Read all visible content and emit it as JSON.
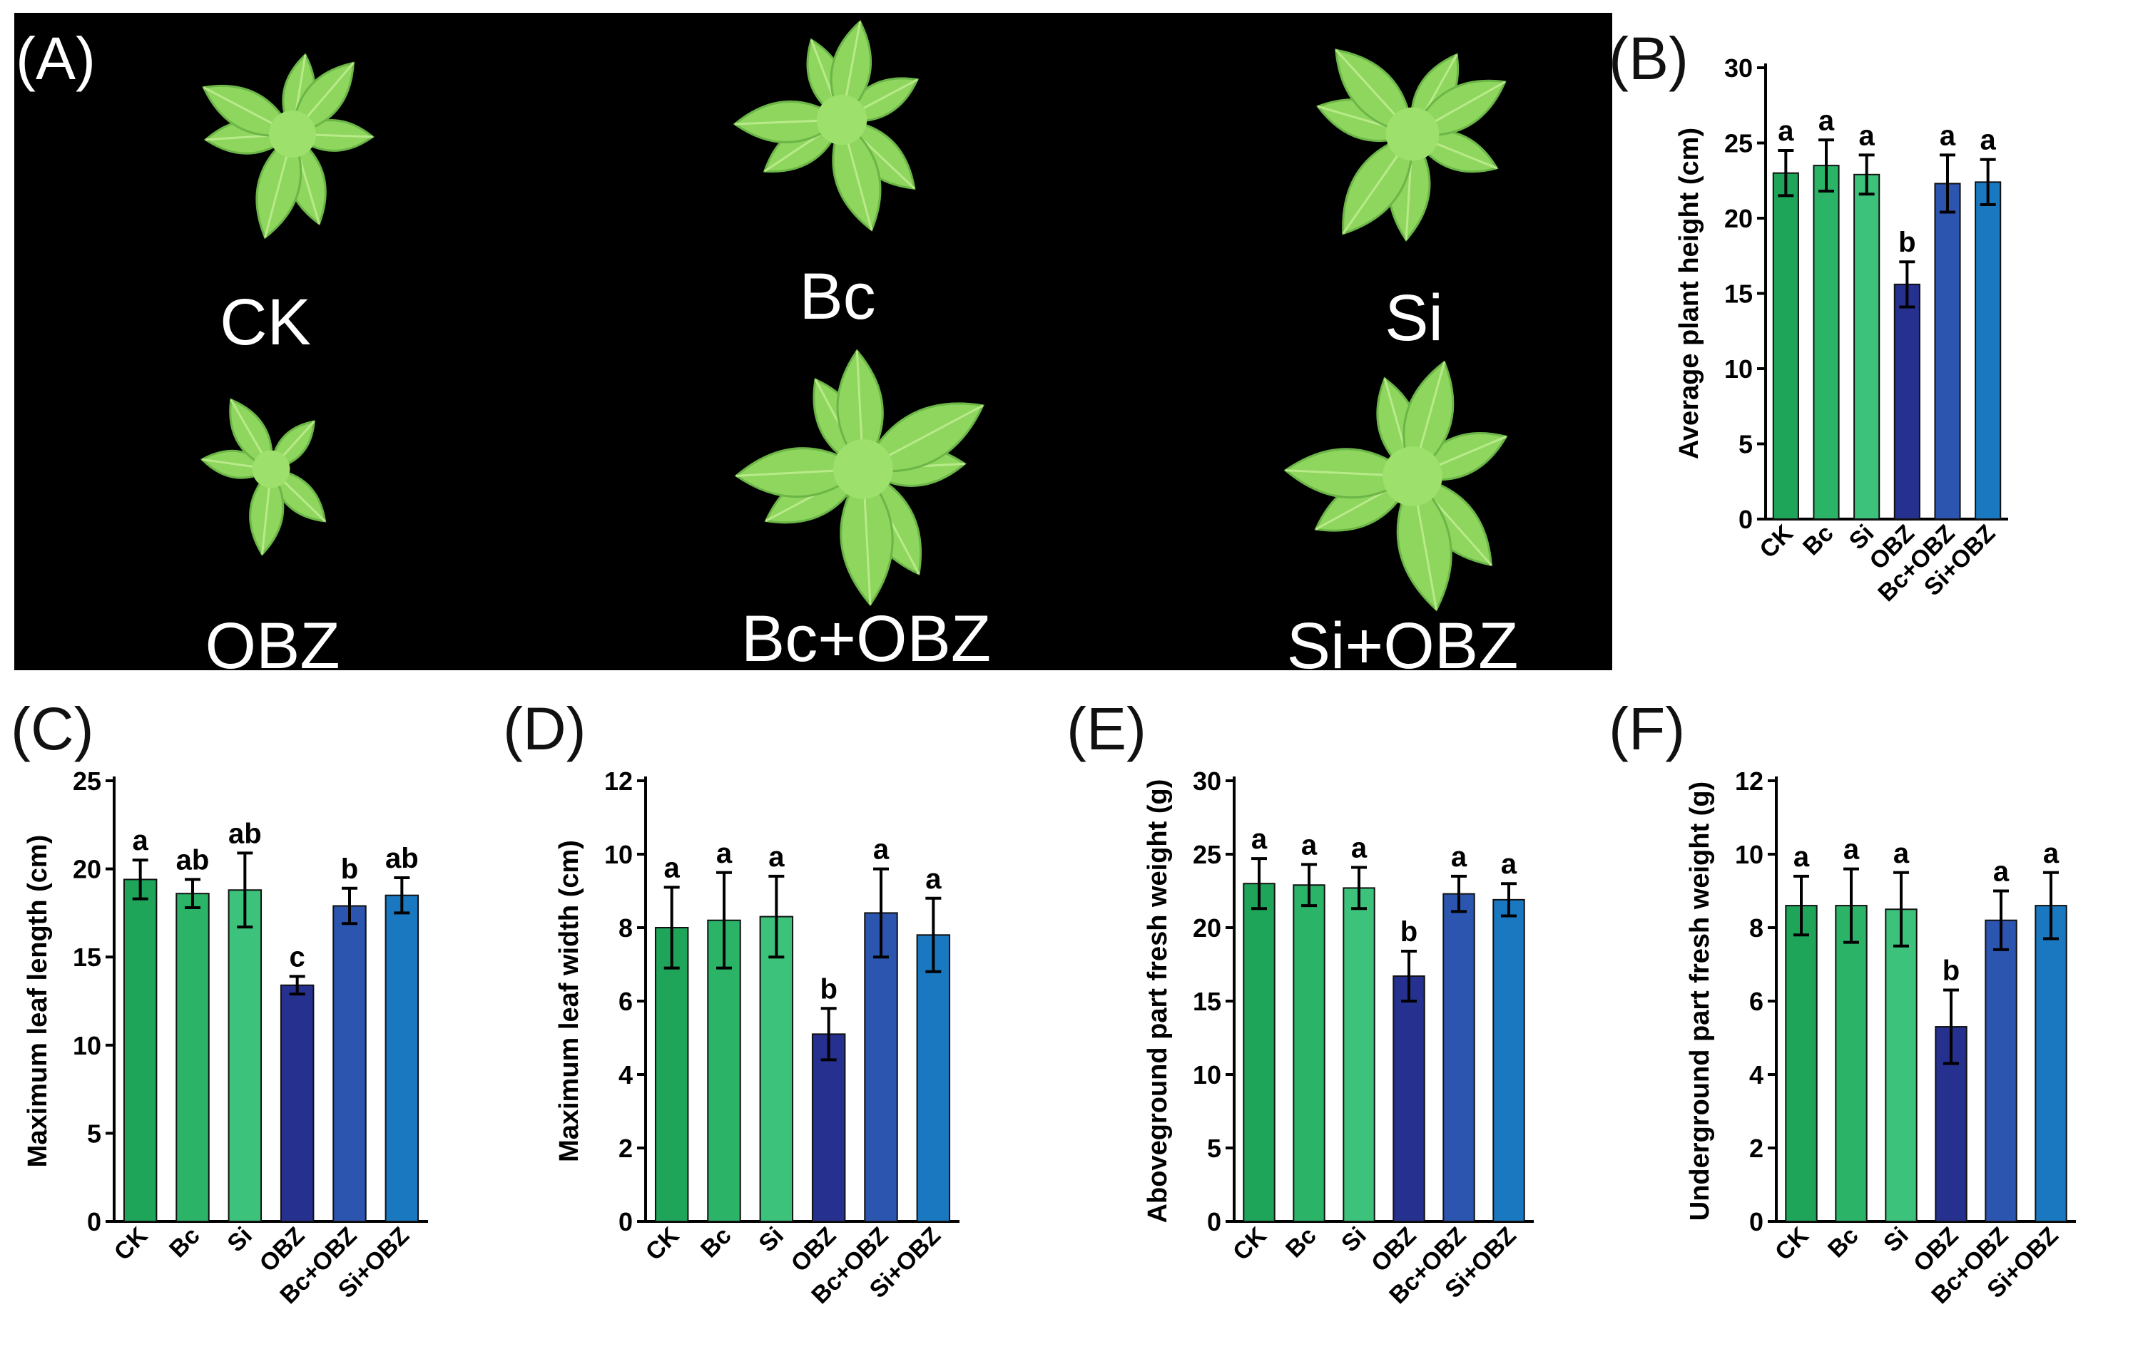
{
  "panel_a": {
    "letter": "(A)",
    "labels": [
      "CK",
      "Bc",
      "Si",
      "OBZ",
      "Bc+OBZ",
      "Si+OBZ"
    ]
  },
  "colors": {
    "CK": "#1ea55a",
    "Bc": "#2bb368",
    "Si": "#3cc27a",
    "OBZ": "#25308f",
    "Bc+OBZ": "#2c55b0",
    "Si+OBZ": "#1a78c0",
    "background_photo": "#000000",
    "leaf": "#8ed65e"
  },
  "chart_data": [
    {
      "id": "B",
      "letter": "(B)",
      "type": "bar",
      "categories": [
        "CK",
        "Bc",
        "Si",
        "OBZ",
        "Bc+OBZ",
        "Si+OBZ"
      ],
      "values": [
        23.0,
        23.5,
        22.9,
        15.6,
        22.3,
        22.4
      ],
      "errors": [
        1.5,
        1.7,
        1.3,
        1.5,
        1.9,
        1.5
      ],
      "significance": [
        "a",
        "a",
        "a",
        "b",
        "a",
        "a"
      ],
      "ylabel": "Average plant height (cm)",
      "ylim": [
        0,
        30
      ],
      "yticks": [
        0,
        5,
        10,
        15,
        20,
        25,
        30
      ]
    },
    {
      "id": "C",
      "letter": "(C)",
      "type": "bar",
      "categories": [
        "CK",
        "Bc",
        "Si",
        "OBZ",
        "Bc+OBZ",
        "Si+OBZ"
      ],
      "values": [
        19.4,
        18.6,
        18.8,
        13.4,
        17.9,
        18.5
      ],
      "errors": [
        1.1,
        0.8,
        2.1,
        0.5,
        1.0,
        1.0
      ],
      "significance": [
        "a",
        "ab",
        "ab",
        "c",
        "b",
        "ab"
      ],
      "ylabel": "Maximum leaf length (cm)",
      "ylim": [
        0,
        25
      ],
      "yticks": [
        0,
        5,
        10,
        15,
        20,
        25
      ]
    },
    {
      "id": "D",
      "letter": "(D)",
      "type": "bar",
      "categories": [
        "CK",
        "Bc",
        "Si",
        "OBZ",
        "Bc+OBZ",
        "Si+OBZ"
      ],
      "values": [
        8.0,
        8.2,
        8.3,
        5.1,
        8.4,
        7.8
      ],
      "errors": [
        1.1,
        1.3,
        1.1,
        0.7,
        1.2,
        1.0
      ],
      "significance": [
        "a",
        "a",
        "a",
        "b",
        "a",
        "a"
      ],
      "ylabel": "Maximum leaf width (cm)",
      "ylim": [
        0,
        12
      ],
      "yticks": [
        0,
        2,
        4,
        6,
        8,
        10,
        12
      ]
    },
    {
      "id": "E",
      "letter": "(E)",
      "type": "bar",
      "categories": [
        "CK",
        "Bc",
        "Si",
        "OBZ",
        "Bc+OBZ",
        "Si+OBZ"
      ],
      "values": [
        23.0,
        22.9,
        22.7,
        16.7,
        22.3,
        21.9
      ],
      "errors": [
        1.7,
        1.4,
        1.4,
        1.7,
        1.2,
        1.1
      ],
      "significance": [
        "a",
        "a",
        "a",
        "b",
        "a",
        "a"
      ],
      "ylabel": "Aboveground part fresh weight (g)",
      "ylim": [
        0,
        30
      ],
      "yticks": [
        0,
        5,
        10,
        15,
        20,
        25,
        30
      ]
    },
    {
      "id": "F",
      "letter": "(F)",
      "type": "bar",
      "categories": [
        "CK",
        "Bc",
        "Si",
        "OBZ",
        "Bc+OBZ",
        "Si+OBZ"
      ],
      "values": [
        8.6,
        8.6,
        8.5,
        5.3,
        8.2,
        8.6
      ],
      "errors": [
        0.8,
        1.0,
        1.0,
        1.0,
        0.8,
        0.9
      ],
      "significance": [
        "a",
        "a",
        "a",
        "b",
        "a",
        "a"
      ],
      "ylabel": "Underground part fresh weight (g)",
      "ylim": [
        0,
        12
      ],
      "yticks": [
        0,
        2,
        4,
        6,
        8,
        10,
        12
      ]
    }
  ]
}
